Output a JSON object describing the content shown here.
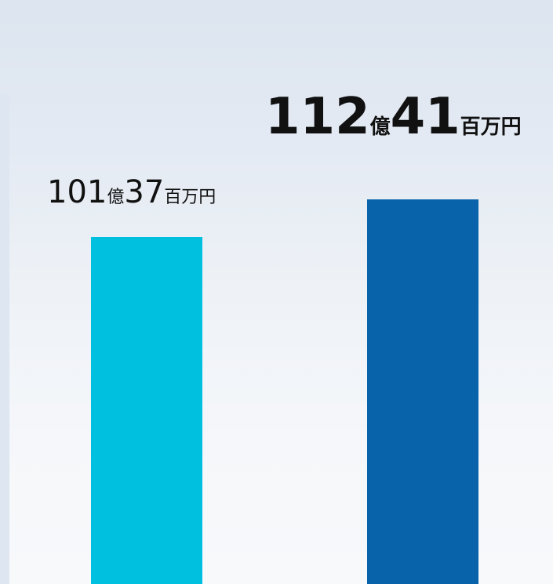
{
  "chart_data": {
    "type": "bar",
    "categories": [
      "",
      ""
    ],
    "values": [
      10137,
      11241
    ],
    "unit": "百万円",
    "colors": [
      "#00c0e0",
      "#0863ab"
    ],
    "data_labels": [
      {
        "big1": "101",
        "unit1": "億",
        "big2": "37",
        "unit2": "百万円"
      },
      {
        "big1": "112",
        "unit1": "億",
        "big2": "41",
        "unit2": "百万円"
      }
    ]
  }
}
